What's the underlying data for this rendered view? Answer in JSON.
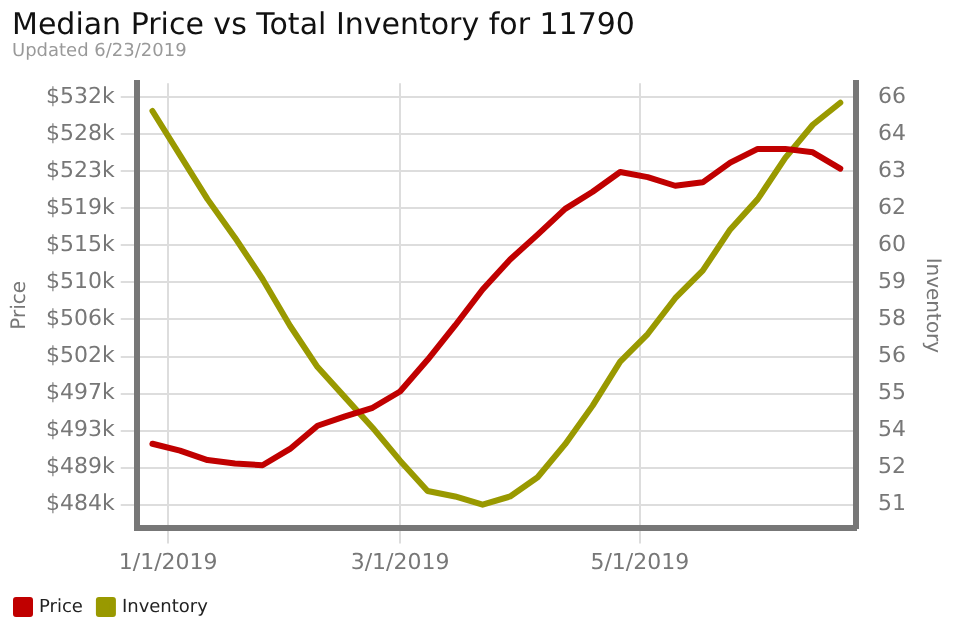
{
  "chart_data": {
    "type": "line",
    "title": "Median Price vs Total Inventory for 11790",
    "subtitle": "Updated 6/23/2019",
    "ylabel": "Price",
    "y2label": "Inventory",
    "x": [
      "2018-12-28",
      "2019-01-04",
      "2019-01-11",
      "2019-01-18",
      "2019-01-25",
      "2019-02-01",
      "2019-02-08",
      "2019-02-15",
      "2019-02-22",
      "2019-03-01",
      "2019-03-08",
      "2019-03-15",
      "2019-03-22",
      "2019-03-29",
      "2019-04-05",
      "2019-04-12",
      "2019-04-19",
      "2019-04-26",
      "2019-05-03",
      "2019-05-10",
      "2019-05-17",
      "2019-05-24",
      "2019-05-31",
      "2019-06-07",
      "2019-06-14",
      "2019-06-21"
    ],
    "series": [
      {
        "name": "Price",
        "color": "#c00000",
        "values": [
          491500,
          490700,
          489600,
          489200,
          489000,
          490900,
          493600,
          494700,
          495700,
          497600,
          501300,
          505300,
          509500,
          513000,
          515900,
          518900,
          520900,
          523200,
          522600,
          521600,
          522000,
          524300,
          525900,
          525900,
          525500,
          523600
        ]
      },
      {
        "name": "Inventory",
        "color": "#999900",
        "axis": "y2",
        "values": [
          65.3,
          63.7,
          62.1,
          60.7,
          59.2,
          57.5,
          56.0,
          54.9,
          53.8,
          52.6,
          51.5,
          51.3,
          51.0,
          51.3,
          52.0,
          53.2,
          54.6,
          56.2,
          57.2,
          58.5,
          59.5,
          61.0,
          62.1,
          63.6,
          64.8,
          65.6
        ]
      }
    ],
    "xlim": [
      "2018-12-24",
      "2019-06-25"
    ],
    "xticks": [
      {
        "value": "2019-01-01",
        "label": "1/1/2019"
      },
      {
        "value": "2019-03-01",
        "label": "3/1/2019"
      },
      {
        "value": "2019-05-01",
        "label": "5/1/2019"
      }
    ],
    "ylim": [
      481722,
      533562
    ],
    "yticks": [
      {
        "value": 484400,
        "label": "$484k"
      },
      {
        "value": 488720,
        "label": "$489k"
      },
      {
        "value": 493040,
        "label": "$493k"
      },
      {
        "value": 497360,
        "label": "$497k"
      },
      {
        "value": 501680,
        "label": "$502k"
      },
      {
        "value": 506000,
        "label": "$506k"
      },
      {
        "value": 510320,
        "label": "$510k"
      },
      {
        "value": 514640,
        "label": "$515k"
      },
      {
        "value": 518960,
        "label": "$519k"
      },
      {
        "value": 523280,
        "label": "$523k"
      },
      {
        "value": 527600,
        "label": "$528k"
      },
      {
        "value": 531920,
        "label": "$532k"
      }
    ],
    "y2lim": [
      50.17,
      66.31
    ],
    "y2ticks": [
      51,
      {
        "value": 52.345,
        "label": "52"
      },
      {
        "value": 53.69,
        "label": "54"
      },
      {
        "value": 55.035,
        "label": "55"
      },
      {
        "value": 56.38,
        "label": "56"
      },
      {
        "value": 57.725,
        "label": "58"
      },
      {
        "value": 59.07,
        "label": "59"
      },
      {
        "value": 60.415,
        "label": "60"
      },
      {
        "value": 61.76,
        "label": "62"
      },
      {
        "value": 63.105,
        "label": "63"
      },
      {
        "value": 64.45,
        "label": "64"
      },
      {
        "value": 65.795,
        "label": "66"
      }
    ],
    "grid": true,
    "legend": "bottom left",
    "marker": "none",
    "line_style": "solid"
  }
}
